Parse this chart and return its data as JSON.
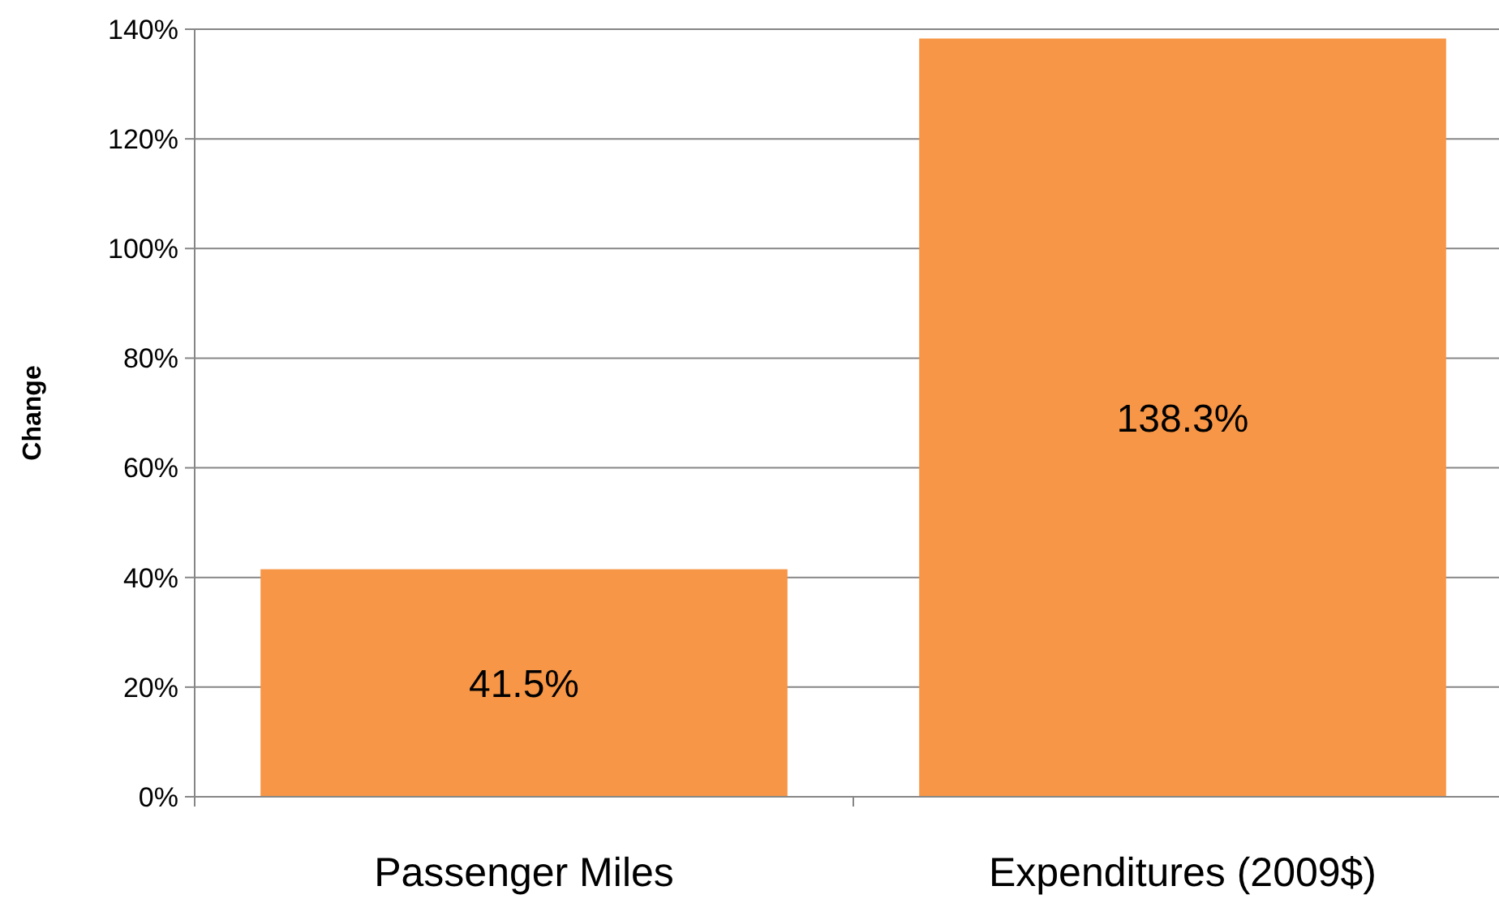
{
  "chart_data": {
    "type": "bar",
    "ylabel": "Change",
    "categories": [
      "Passenger Miles",
      "Expenditures (2009$)"
    ],
    "values": [
      41.5,
      138.3
    ],
    "color": "#f79646",
    "value_labels": [
      "41.5%",
      "138.3%"
    ],
    "ylim": [
      0,
      140
    ],
    "yticks": [
      {
        "value": 0,
        "label": "0%"
      },
      {
        "value": 20,
        "label": "20%"
      },
      {
        "value": 40,
        "label": "40%"
      },
      {
        "value": 60,
        "label": "60%"
      },
      {
        "value": 80,
        "label": "80%"
      },
      {
        "value": 100,
        "label": "100%"
      },
      {
        "value": 120,
        "label": "120%"
      },
      {
        "value": 140,
        "label": "140%"
      }
    ],
    "grid": "y"
  }
}
